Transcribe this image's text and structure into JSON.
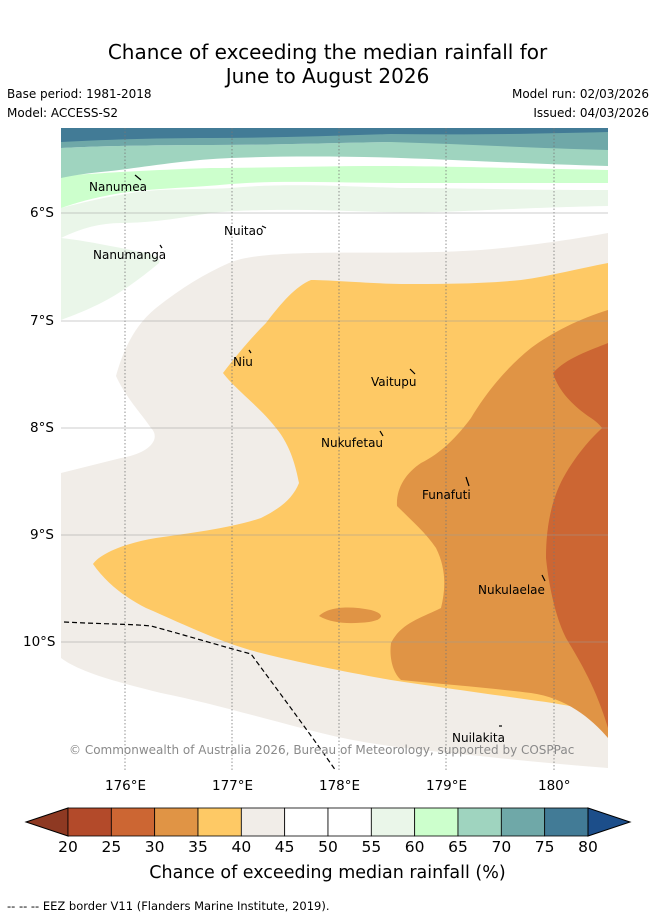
{
  "title": {
    "line1": "Chance of exceeding the median rainfall for",
    "line2": "June to August 2026"
  },
  "meta": {
    "base_period": "Base period: 1981-2018",
    "model": "Model: ACCESS-S2",
    "model_run": "Model run: 02/03/2026",
    "issued": "Issued: 04/03/2026"
  },
  "map": {
    "x_ticks": [
      "176°E",
      "177°E",
      "178°E",
      "179°E",
      "180°"
    ],
    "y_ticks": [
      "6°S",
      "7°S",
      "8°S",
      "9°S",
      "10°S"
    ],
    "islands": [
      "Nanumea",
      "Nuitao",
      "Nanumanga",
      "Niu",
      "Vaitupu",
      "Nukufetau",
      "Funafuti",
      "Nukulaelae",
      "Nuilakita"
    ],
    "copyright": "© Commonwealth of Australia 2026, Bureau of Meteorology, supported by COSPPac"
  },
  "colorbar": {
    "ticks": [
      "20",
      "25",
      "30",
      "35",
      "40",
      "45",
      "50",
      "55",
      "60",
      "65",
      "70",
      "75",
      "80"
    ],
    "colors": [
      "#b34a2a",
      "#cc6633",
      "#e09445",
      "#fec965",
      "#f1ede8",
      "#ffffff",
      "#ffffff",
      "#eaf6e9",
      "#ccffcc",
      "#9fd4bf",
      "#6fa8a8",
      "#427b96"
    ],
    "under_color": "#8e3922",
    "over_color": "#1c4e8a",
    "title": "Chance of exceeding median rainfall (%)"
  },
  "footer": "-- -- -- EEZ border V11 (Flanders Marine Institute, 2019)."
}
